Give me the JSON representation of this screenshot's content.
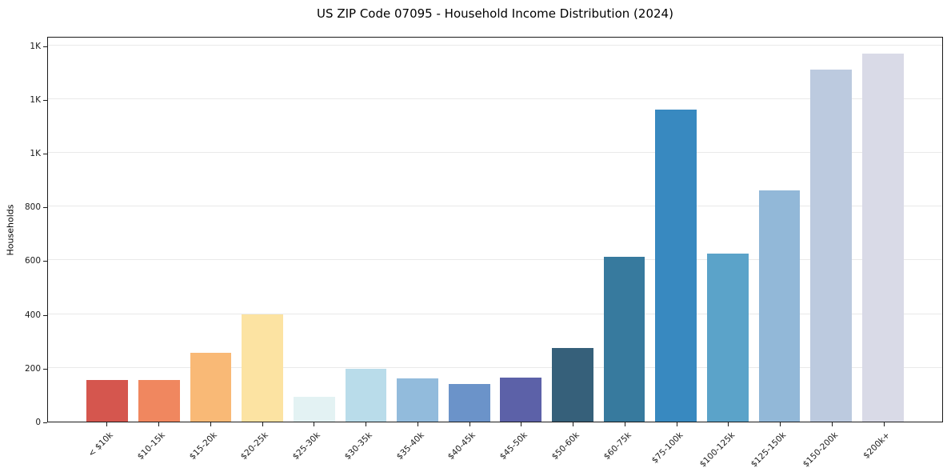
{
  "chart_data": {
    "type": "bar",
    "title": "US ZIP Code 07095 - Household Income Distribution (2024)",
    "xlabel": "",
    "ylabel": "Households",
    "categories": [
      "< $10k",
      "$10-15k",
      "$15-20k",
      "$20-25k",
      "$25-30k",
      "$30-35k",
      "$35-40k",
      "$40-45k",
      "$45-50k",
      "$50-60k",
      "$60-75k",
      "$75-100k",
      "$100-125k",
      "$125-150k",
      "$150-200k",
      "$200k+"
    ],
    "values": [
      155,
      155,
      255,
      400,
      92,
      198,
      162,
      140,
      165,
      275,
      612,
      1160,
      625,
      860,
      1310,
      1370
    ],
    "bar_colors": [
      "#d5564e",
      "#f0875f",
      "#f9b976",
      "#fce3a2",
      "#e3f2f3",
      "#b9dcea",
      "#92bbdc",
      "#6b93c9",
      "#5c61a8",
      "#36607a",
      "#377a9e",
      "#3889c0",
      "#5ba3c9",
      "#92b8d8",
      "#bccadf",
      "#d9dae7"
    ],
    "ylim": [
      0,
      1435
    ],
    "yticks": [
      {
        "value": 0,
        "label": "0"
      },
      {
        "value": 200,
        "label": "200"
      },
      {
        "value": 400,
        "label": "400"
      },
      {
        "value": 600,
        "label": "600"
      },
      {
        "value": 800,
        "label": "800"
      },
      {
        "value": 1000,
        "label": "1K"
      },
      {
        "value": 1200,
        "label": "1K"
      },
      {
        "value": 1400,
        "label": "1K"
      }
    ],
    "grid": "horizontal",
    "legend": "none"
  }
}
